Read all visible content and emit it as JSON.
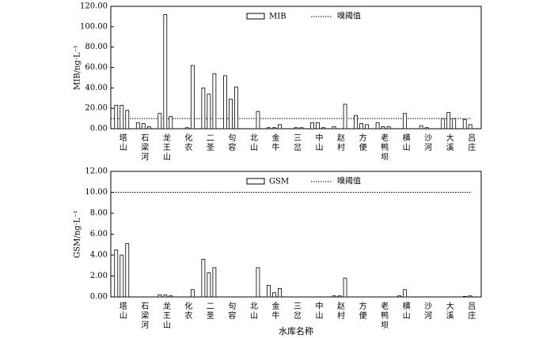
{
  "chart_data": [
    {
      "type": "bar",
      "y_label": "MIB/ng·L⁻¹",
      "categories": [
        "塔山",
        "石梁河",
        "龙王山",
        "化农",
        "二圣",
        "句容",
        "北山",
        "金牛",
        "三岔",
        "中山",
        "赵村",
        "方便",
        "老鸭坝",
        "横山",
        "沙河",
        "大溪",
        "吕庄"
      ],
      "series": [
        {
          "name": "MIB",
          "color": "#ffffff",
          "values": [
            [
              23,
              23,
              18
            ],
            [
              6,
              5,
              2
            ],
            [
              15,
              112,
              12
            ],
            [
              0,
              1,
              62
            ],
            [
              40,
              34,
              54
            ],
            [
              52,
              29,
              41
            ],
            [
              0,
              0,
              17
            ],
            [
              1,
              1,
              4
            ],
            [
              0,
              1,
              1
            ],
            [
              6,
              6,
              1
            ],
            [
              2,
              0,
              24
            ],
            [
              13,
              5,
              4
            ],
            [
              6,
              2,
              2
            ],
            [
              0,
              15,
              0
            ],
            [
              3,
              1,
              0
            ],
            [
              10,
              16,
              10
            ],
            [
              9,
              4,
              0
            ]
          ]
        }
      ],
      "threshold": {
        "name": "嗅阈值",
        "value": 10
      },
      "ylim": [
        0,
        120
      ],
      "yticks": [
        {
          "value": 0,
          "label": "0.00"
        },
        {
          "value": 20,
          "label": "20.00"
        },
        {
          "value": 40,
          "label": "40.00"
        },
        {
          "value": 60,
          "label": "60.00"
        },
        {
          "value": 80,
          "label": "80.00"
        },
        {
          "value": 100,
          "label": "100.00"
        },
        {
          "value": 120,
          "label": "120.00"
        }
      ]
    },
    {
      "type": "bar",
      "y_label": "GSM/ng·L⁻¹",
      "x_label": "水库名称",
      "categories": [
        "塔山",
        "石梁河",
        "龙王山",
        "化农",
        "二圣",
        "句容",
        "北山",
        "金牛",
        "三岔",
        "中山",
        "赵村",
        "方便",
        "老鸭坝",
        "横山",
        "沙河",
        "大溪",
        "吕庄"
      ],
      "series": [
        {
          "name": "GSM",
          "color": "#ffffff",
          "values": [
            [
              4.5,
              4.0,
              5.1
            ],
            [
              0,
              0,
              0
            ],
            [
              0.2,
              0.2,
              0.1
            ],
            [
              0,
              0,
              0.7
            ],
            [
              3.6,
              2.3,
              2.8
            ],
            [
              0,
              0,
              0
            ],
            [
              0,
              0,
              2.8
            ],
            [
              1.1,
              0.4,
              0.8
            ],
            [
              0,
              0,
              0
            ],
            [
              0,
              0,
              0
            ],
            [
              0.1,
              0.1,
              1.8
            ],
            [
              0,
              0,
              0
            ],
            [
              0,
              0,
              0
            ],
            [
              0.1,
              0.7,
              0
            ],
            [
              0,
              0,
              0
            ],
            [
              0,
              0,
              0
            ],
            [
              0.05,
              0.1,
              0
            ]
          ]
        }
      ],
      "threshold": {
        "name": "嗅阈值",
        "value": 10
      },
      "ylim": [
        0,
        12
      ],
      "yticks": [
        {
          "value": 0,
          "label": "0.00"
        },
        {
          "value": 2,
          "label": "2.00"
        },
        {
          "value": 4,
          "label": "4.00"
        },
        {
          "value": 6,
          "label": "6.00"
        },
        {
          "value": 8,
          "label": "8.00"
        },
        {
          "value": 10,
          "label": "10.00"
        },
        {
          "value": 12,
          "label": "12.00"
        }
      ]
    }
  ]
}
